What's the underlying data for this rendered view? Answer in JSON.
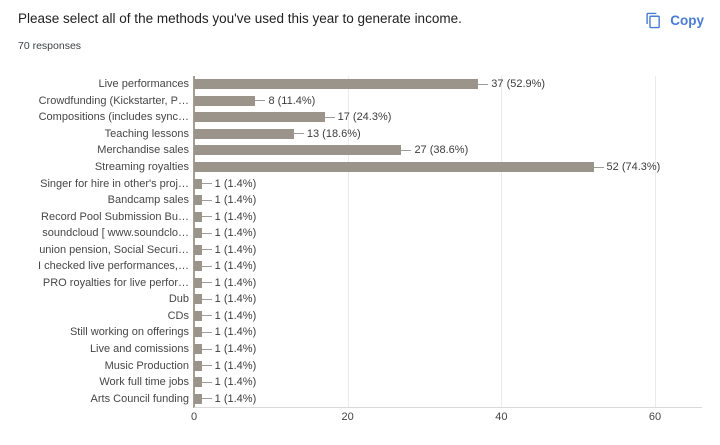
{
  "header": {
    "title": "Please select all of the methods you've used this year to generate income.",
    "responses": "70 responses",
    "copy_label": "Copy"
  },
  "colors": {
    "bar": "#9b948a",
    "accent_blue": "#4a7cd6",
    "title_text": "#212121",
    "label_text": "#464646",
    "gridline": "#ebebeb"
  },
  "chart_data": {
    "type": "bar",
    "orientation": "horizontal",
    "title": "Please select all of the methods you've used this year to generate income.",
    "categories": [
      "Live performances",
      "Crowdfunding (Kickstarter, P…",
      "Compositions (includes sync…",
      "Teaching lessons",
      "Merchandise sales",
      "Streaming royalties",
      "Singer for hire in other's proj…",
      "Bandcamp sales",
      "Record Pool Submission Bu…",
      "soundcloud [ www.soundclo…",
      "union pension, Social Securi…",
      "I checked live performances,…",
      "PRO royalties for live perfor…",
      "Dub",
      "CDs",
      "Still working on offerings",
      "Live and comissions",
      "Music Production",
      "Work full time jobs",
      "Arts Council funding"
    ],
    "values": [
      37,
      8,
      17,
      13,
      27,
      52,
      1,
      1,
      1,
      1,
      1,
      1,
      1,
      1,
      1,
      1,
      1,
      1,
      1,
      1
    ],
    "annotations": [
      "37 (52.9%)",
      "8 (11.4%)",
      "17 (24.3%)",
      "13 (18.6%)",
      "27 (38.6%)",
      "52 (74.3%)",
      "1 (1.4%)",
      "1 (1.4%)",
      "1 (1.4%)",
      "1 (1.4%)",
      "1 (1.4%)",
      "1 (1.4%)",
      "1 (1.4%)",
      "1 (1.4%)",
      "1 (1.4%)",
      "1 (1.4%)",
      "1 (1.4%)",
      "1 (1.4%)",
      "1 (1.4%)",
      "1 (1.4%)"
    ],
    "xlabel": "",
    "ylabel": "",
    "xticks": [
      0,
      20,
      40,
      60
    ],
    "xlim": [
      0,
      66
    ],
    "grid": true,
    "legend": "none"
  }
}
